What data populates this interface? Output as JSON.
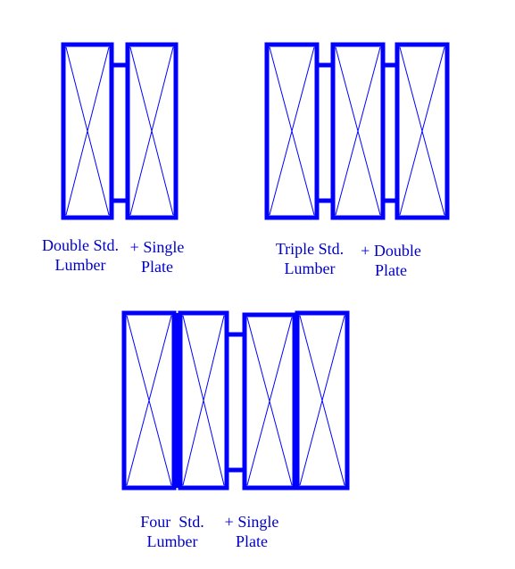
{
  "colors": {
    "stroke": "#0000ff",
    "text": "#0000cc",
    "background": "#ffffff"
  },
  "groups": [
    {
      "name": "double",
      "label_lumber_1": "Double Std.",
      "label_lumber_2": "Lumber",
      "label_plate_1": "+ Single",
      "label_plate_2": "Plate"
    },
    {
      "name": "triple",
      "label_lumber_1": "Triple Std.",
      "label_lumber_2": "Lumber",
      "label_plate_1": "+ Double",
      "label_plate_2": "Plate"
    },
    {
      "name": "four",
      "label_lumber_1": "Four  Std.",
      "label_lumber_2": "Lumber",
      "label_plate_1": "+ Single",
      "label_plate_2": "Plate"
    }
  ]
}
